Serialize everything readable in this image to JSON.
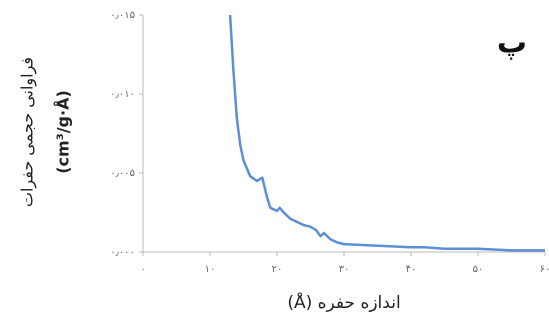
{
  "chart_data": {
    "type": "line",
    "annotation": "پ",
    "x_label": "اندازه حفره (Å)",
    "y_label": [
      "فراوانی حجمی حفرات",
      "(cm³/g·Å)"
    ],
    "series": [
      {
        "color": "#5b8fd6",
        "x": [
          13,
          13.5,
          14,
          14.5,
          15,
          16,
          17,
          17.8,
          18.5,
          19,
          20,
          20.4,
          21,
          22,
          23,
          24,
          25,
          25.8,
          26.5,
          27,
          28,
          29,
          30,
          35,
          40,
          42,
          45,
          50,
          55,
          60
        ],
        "values": [
          0.015,
          0.0115,
          0.0085,
          0.0068,
          0.0058,
          0.0048,
          0.0045,
          0.0047,
          0.0035,
          0.0028,
          0.0026,
          0.0028,
          0.0025,
          0.0021,
          0.0019,
          0.0017,
          0.0016,
          0.0014,
          0.001,
          0.0012,
          0.0008,
          0.0006,
          0.0005,
          0.0004,
          0.0003,
          0.0003,
          0.0002,
          0.0002,
          0.0001,
          0.0001
        ]
      }
    ],
    "xlim": [
      0,
      60
    ],
    "xticks": [
      {
        "value": 0,
        "label": "۰"
      },
      {
        "value": 10,
        "label": "۱۰"
      },
      {
        "value": 20,
        "label": "۲۰"
      },
      {
        "value": 30,
        "label": "۳۰"
      },
      {
        "value": 40,
        "label": "۴۰"
      },
      {
        "value": 50,
        "label": "۵۰"
      },
      {
        "value": 60,
        "label": "۶۰"
      }
    ],
    "ylim": [
      0,
      0.015
    ],
    "yticks": [
      {
        "value": 0,
        "label": "۰٫۰۰۰"
      },
      {
        "value": 0.005,
        "label": "۰٫۰۰۵"
      },
      {
        "value": 0.01,
        "label": "۰٫۰۱۰"
      },
      {
        "value": 0.015,
        "label": "۰٫۰۱۵"
      }
    ],
    "grid": false
  }
}
